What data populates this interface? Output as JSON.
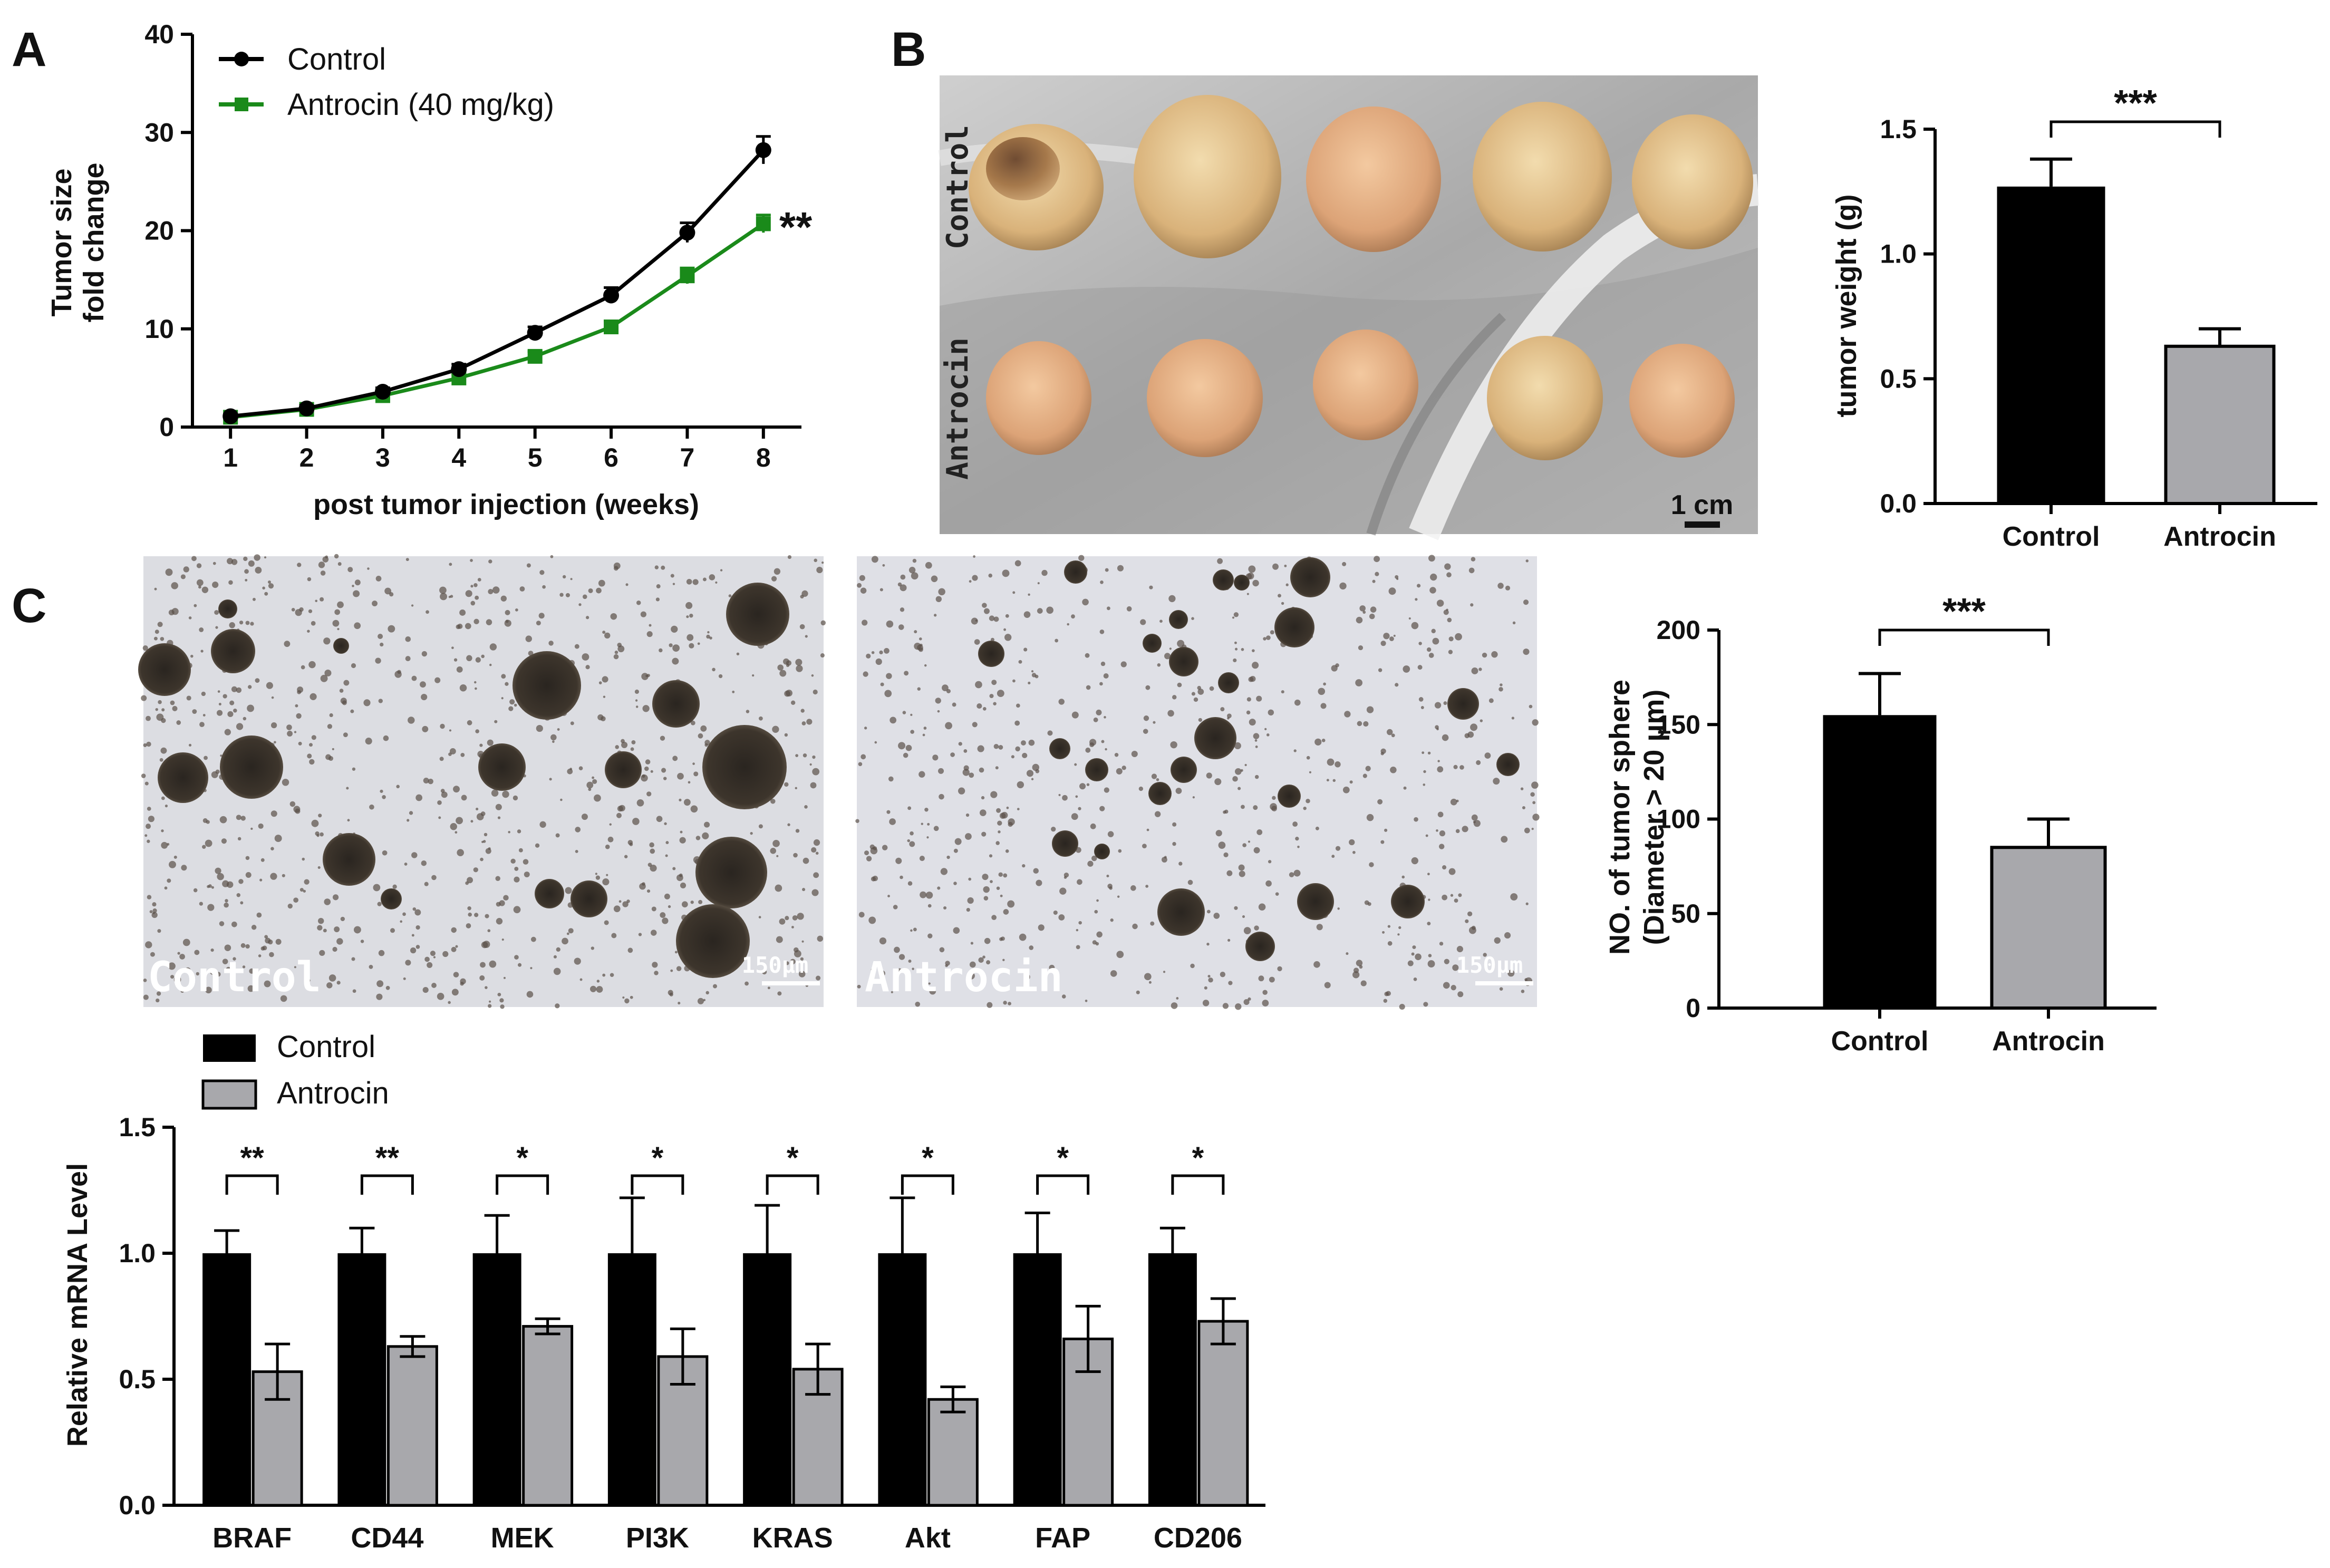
{
  "panels": {
    "a": "A",
    "b": "B",
    "c": "C"
  },
  "colors": {
    "control": "#000000",
    "antrocin": "#1a8a1a",
    "antrocin_bar": "#a8a8ac"
  },
  "chart_data": [
    {
      "id": "A",
      "type": "line",
      "xlabel": "post tumor injection (weeks)",
      "ylabel_line1": "Tumor size",
      "ylabel_line2": "fold change",
      "x": [
        1,
        2,
        3,
        4,
        5,
        6,
        7,
        8
      ],
      "xlim": [
        0.5,
        8.5
      ],
      "ylim": [
        0,
        40
      ],
      "yticks": [
        0,
        10,
        20,
        30,
        40
      ],
      "series": [
        {
          "name": "Control",
          "values": [
            1.1,
            1.9,
            3.6,
            5.9,
            9.6,
            13.4,
            19.8,
            28.2
          ],
          "errors": [
            0.2,
            0.3,
            0.4,
            0.5,
            0.6,
            0.8,
            1.0,
            1.4
          ],
          "marker": "circle"
        },
        {
          "name": "Antrocin (40 mg/kg)",
          "values": [
            1.0,
            1.8,
            3.2,
            5.0,
            7.2,
            10.2,
            15.4,
            20.7
          ],
          "errors": [
            0.2,
            0.3,
            0.4,
            0.4,
            0.5,
            0.6,
            0.8,
            0.9
          ],
          "marker": "square"
        }
      ],
      "annotation": "**"
    },
    {
      "id": "B",
      "type": "bar",
      "ylabel": "tumor weight (g)",
      "categories": [
        "Control",
        "Antrocin"
      ],
      "values": [
        1.27,
        0.63
      ],
      "errors": [
        0.11,
        0.07
      ],
      "ylim": [
        0,
        1.5
      ],
      "yticks": [
        "0.0",
        "0.5",
        "1.0",
        "1.5"
      ],
      "significance": "***"
    },
    {
      "id": "C",
      "type": "bar",
      "ylabel_line1": "NO. of tumor sphere",
      "ylabel_line2": "(Diameter > 20 μm)",
      "categories": [
        "Control",
        "Antrocin"
      ],
      "values": [
        155,
        85
      ],
      "errors": [
        22,
        15
      ],
      "ylim": [
        0,
        200
      ],
      "yticks": [
        "0",
        "50",
        "100",
        "150",
        "200"
      ],
      "significance": "***"
    },
    {
      "id": "D",
      "type": "bar",
      "ylabel": "Relative mRNA Level",
      "categories": [
        "BRAF",
        "CD44",
        "MEK",
        "PI3K",
        "KRAS",
        "Akt",
        "FAP",
        "CD206"
      ],
      "ylim": [
        0,
        1.5
      ],
      "yticks": [
        "0.0",
        "0.5",
        "1.0",
        "1.5"
      ],
      "series": [
        {
          "name": "Control",
          "values": [
            1.0,
            1.0,
            1.0,
            1.0,
            1.0,
            1.0,
            1.0,
            1.0
          ],
          "errors": [
            0.09,
            0.1,
            0.15,
            0.22,
            0.19,
            0.22,
            0.16,
            0.1
          ]
        },
        {
          "name": "Antrocin",
          "values": [
            0.53,
            0.63,
            0.71,
            0.59,
            0.54,
            0.42,
            0.66,
            0.73
          ],
          "errors": [
            0.11,
            0.04,
            0.03,
            0.11,
            0.1,
            0.05,
            0.13,
            0.09
          ]
        }
      ],
      "significance": [
        "**",
        "**",
        "*",
        "*",
        "*",
        "*",
        "*",
        "*"
      ]
    }
  ],
  "photos": {
    "b": {
      "row1_label": "Control",
      "row2_label": "Antrocin",
      "scale_label": "1 cm"
    },
    "c": {
      "left_label": "Control",
      "right_label": "Antrocin",
      "scale_label": "150μm"
    }
  }
}
